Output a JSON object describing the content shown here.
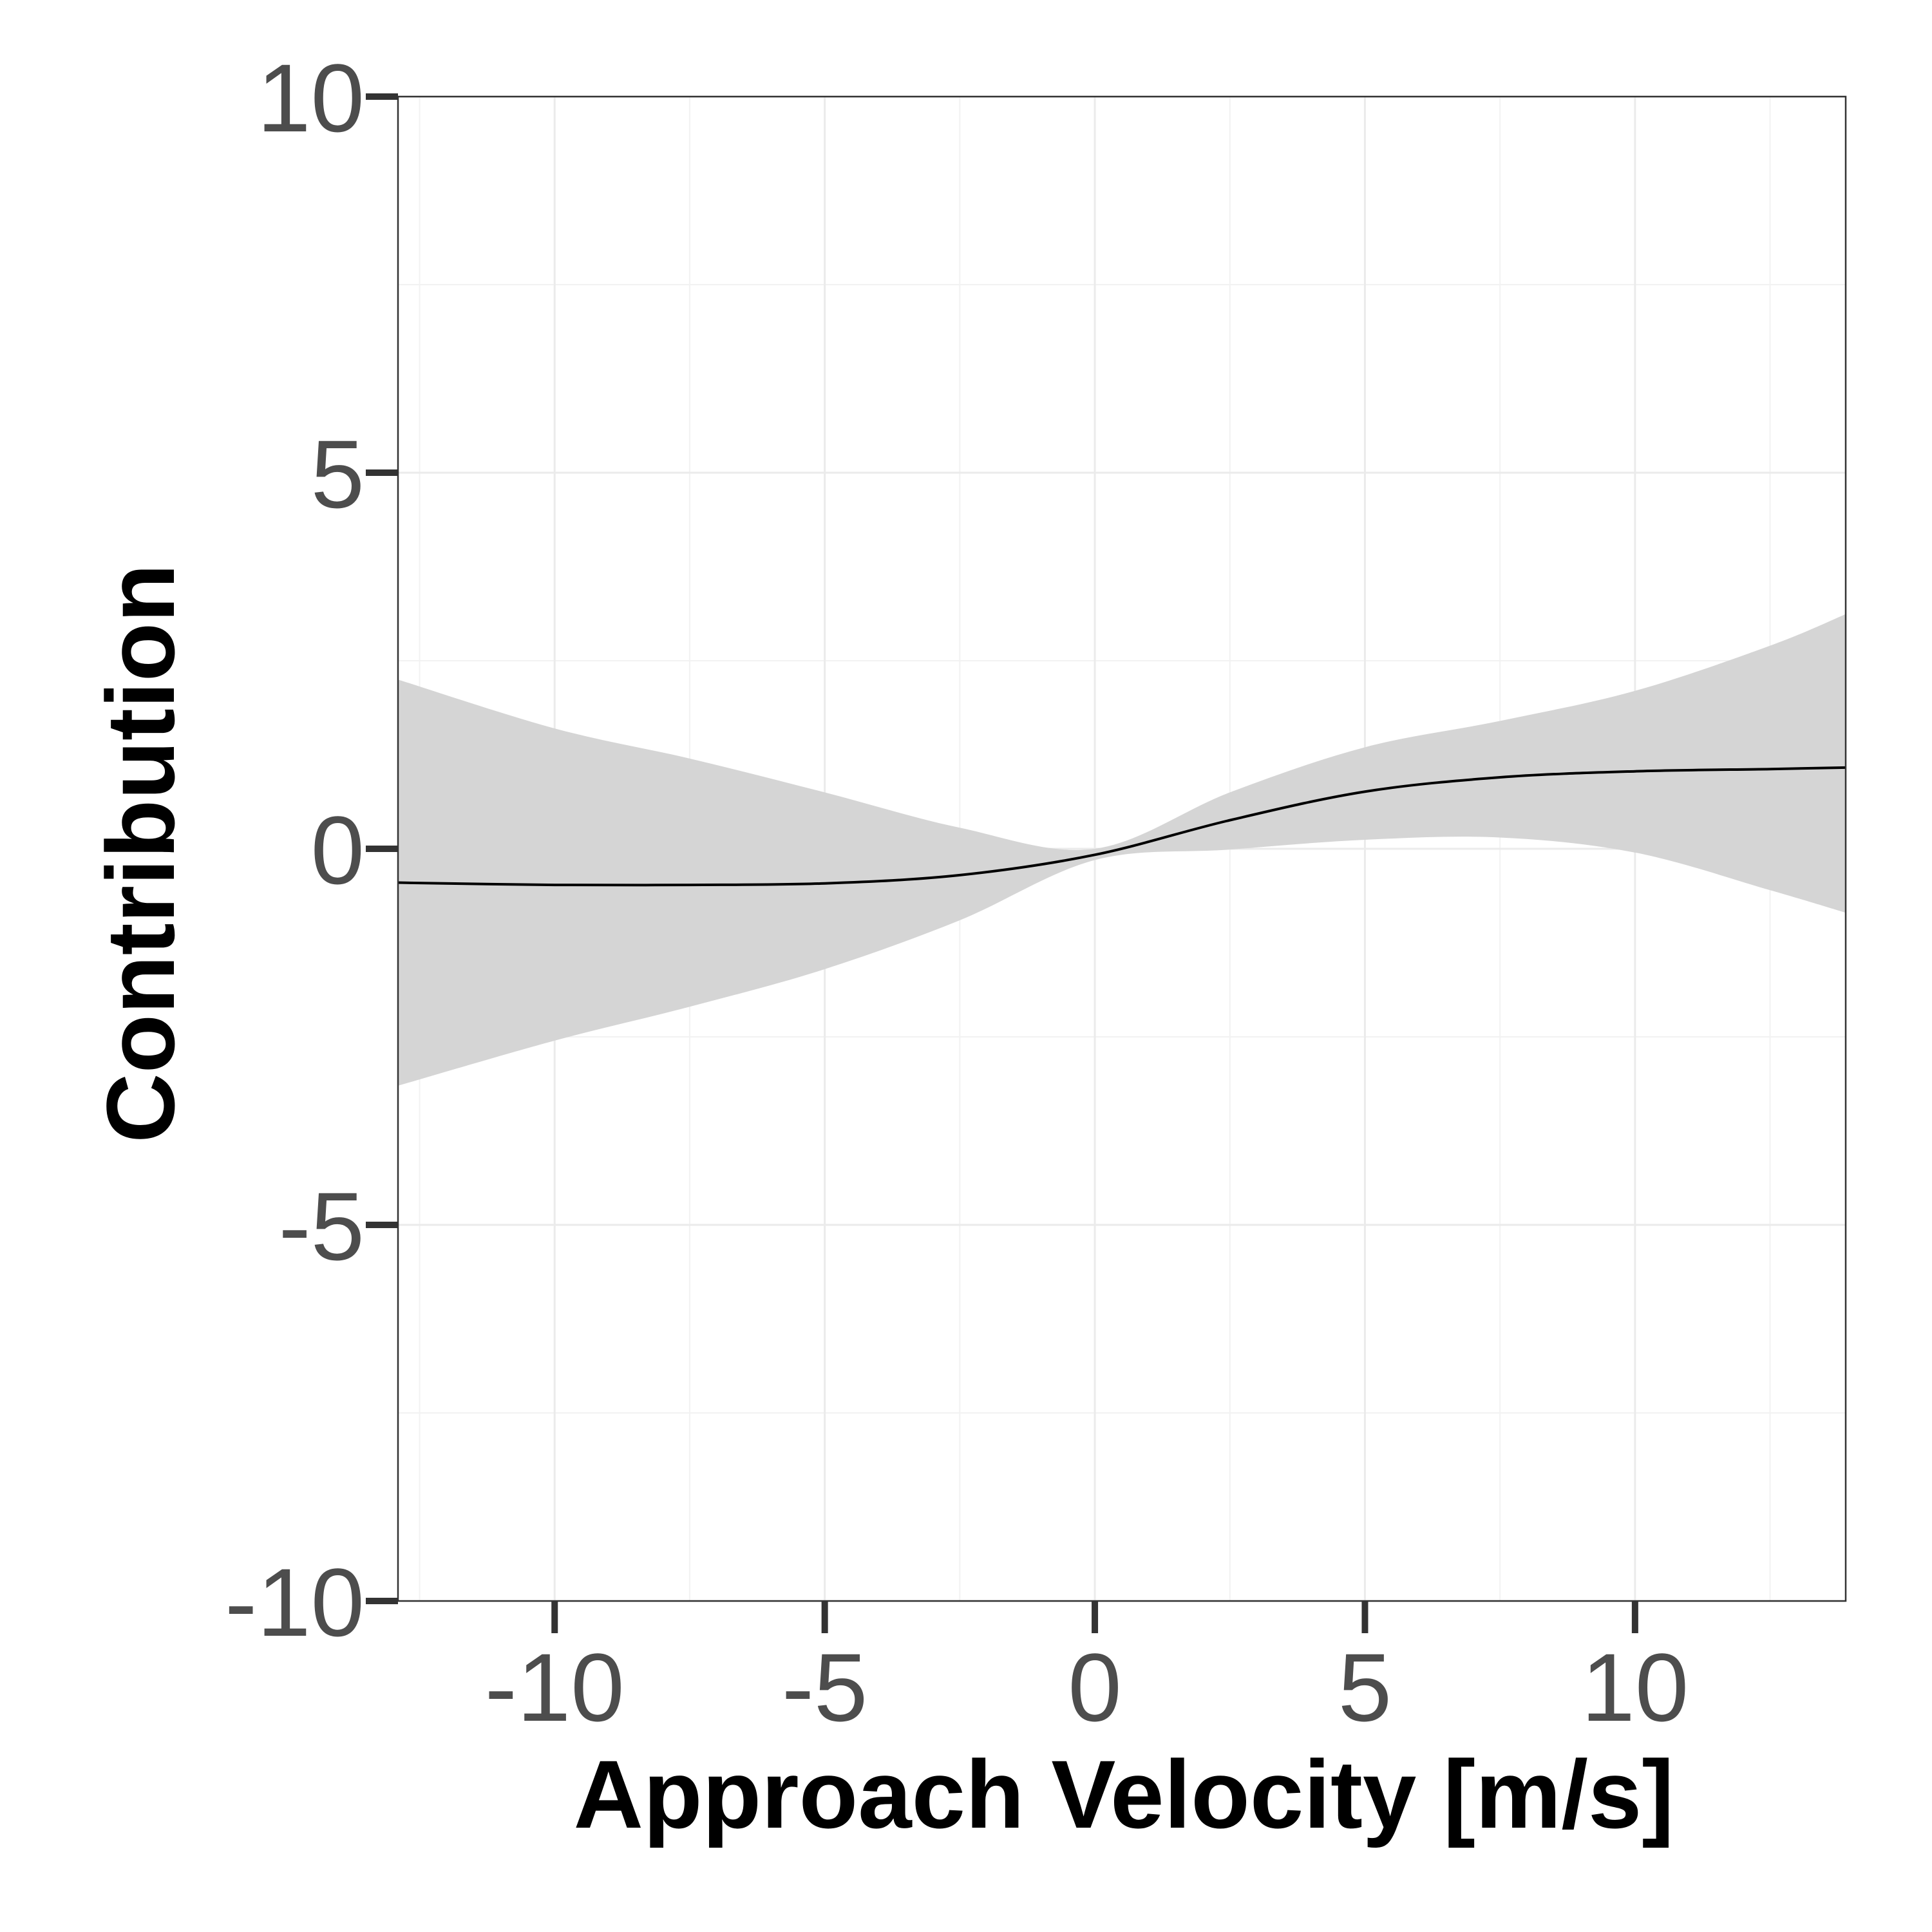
{
  "chart_data": {
    "type": "line",
    "xlabel": "Approach Velocity [m/s]",
    "ylabel": "Contribution",
    "xlim": [
      -12.9,
      13.9
    ],
    "ylim": [
      -10,
      10
    ],
    "x_ticks": [
      -10,
      -5,
      0,
      5,
      10
    ],
    "x_tick_labels": [
      "-10",
      "-5",
      "0",
      "5",
      "10"
    ],
    "y_ticks": [
      -10,
      -5,
      0,
      5,
      10
    ],
    "y_tick_labels": [
      "-10",
      "-5",
      "0",
      "5",
      "10"
    ],
    "grid": true,
    "legend": "none",
    "colors": {
      "line": "#000000",
      "band": "#d5d5d5"
    },
    "series": [
      {
        "x": [
          -12.9,
          -10,
          -7.5,
          -5,
          -2.5,
          0,
          2.5,
          5,
          7.5,
          10,
          12.5,
          13.9
        ],
        "y": [
          -0.45,
          -0.48,
          -0.48,
          -0.46,
          -0.35,
          -0.08,
          0.38,
          0.76,
          0.95,
          1.03,
          1.06,
          1.08
        ],
        "lower": [
          -3.15,
          -2.55,
          -2.1,
          -1.6,
          -0.95,
          -0.15,
          -0.01,
          0.12,
          0.15,
          -0.05,
          -0.55,
          -0.85
        ],
        "upper": [
          2.25,
          1.6,
          1.2,
          0.75,
          0.28,
          0.0,
          0.75,
          1.35,
          1.7,
          2.1,
          2.7,
          3.12
        ]
      }
    ]
  }
}
